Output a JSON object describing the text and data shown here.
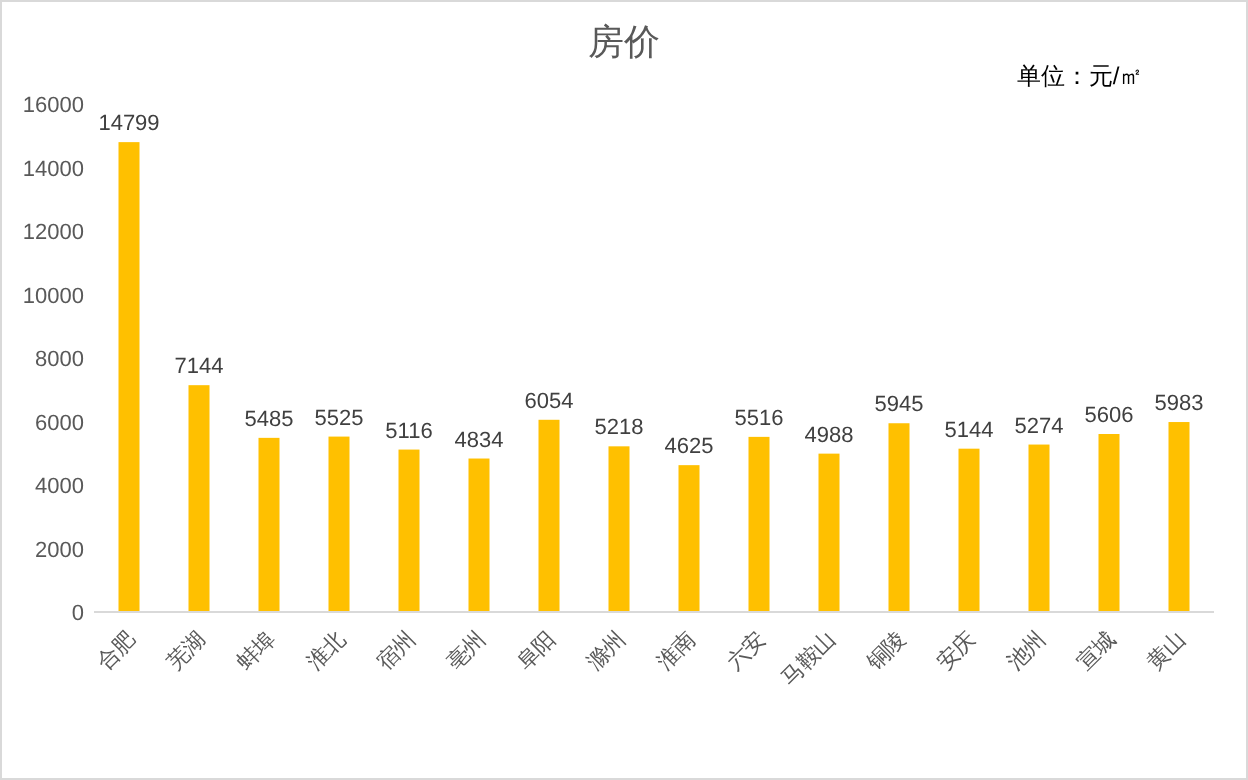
{
  "chart_data": {
    "type": "bar",
    "title": "房价",
    "annotations": [
      "单位：元/㎡"
    ],
    "categories": [
      "合肥",
      "芜湖",
      "蚌埠",
      "淮北",
      "宿州",
      "亳州",
      "阜阳",
      "滁州",
      "淮南",
      "六安",
      "马鞍山",
      "铜陵",
      "安庆",
      "池州",
      "宣城",
      "黄山"
    ],
    "values": [
      14799,
      7144,
      5485,
      5525,
      5116,
      4834,
      6054,
      5218,
      4625,
      5516,
      4988,
      5945,
      5144,
      5274,
      5606,
      5983
    ],
    "color": "#ffc000",
    "ylim": [
      0,
      16000
    ],
    "yticks": [
      0,
      2000,
      4000,
      6000,
      8000,
      10000,
      12000,
      14000,
      16000
    ],
    "data_labels": true,
    "grid": false
  }
}
